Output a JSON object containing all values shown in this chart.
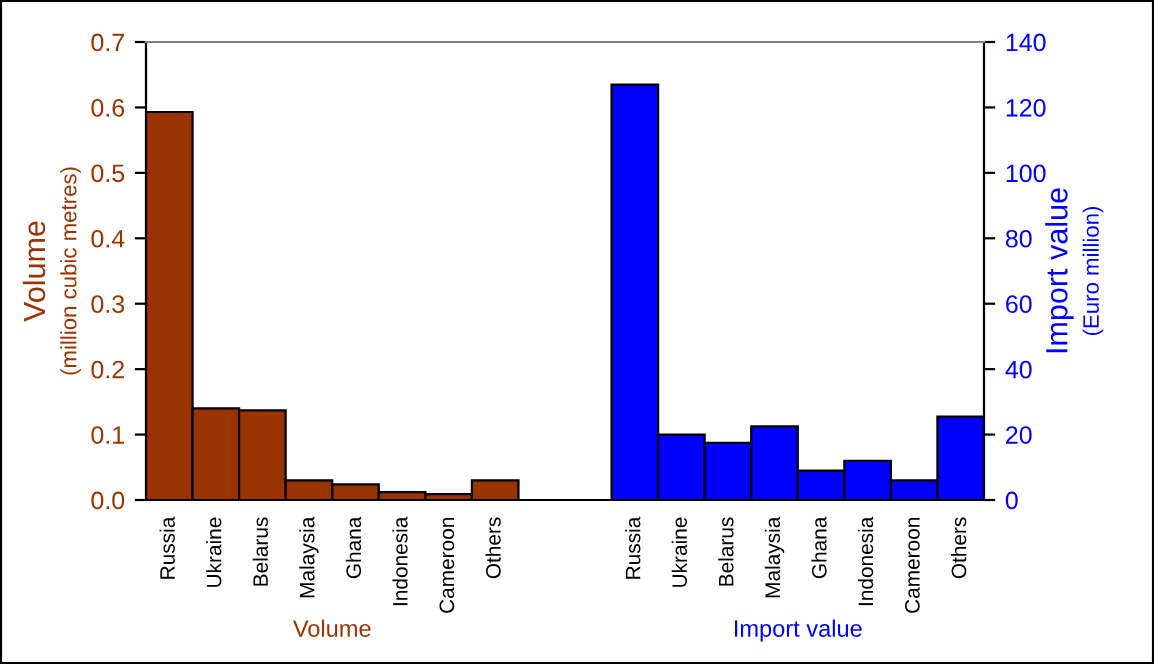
{
  "chart_data": {
    "type": "bar",
    "categories": [
      "Russia",
      "Ukraine",
      "Belarus",
      "Malaysia",
      "Ghana",
      "Indonesia",
      "Cameroon",
      "Others",
      null,
      null,
      "Russia",
      "Ukraine",
      "Belarus",
      "Malaysia",
      "Ghana",
      "Indonesia",
      "Cameroon",
      "Others"
    ],
    "series": [
      {
        "name": "Volume",
        "color": "#993300",
        "values": [
          0.593,
          0.14,
          0.137,
          0.03,
          0.024,
          0.012,
          0.009,
          0.03,
          null,
          null,
          null,
          null,
          null,
          null,
          null,
          null,
          null,
          null
        ]
      },
      {
        "name": "Import value",
        "color": "#0000ff",
        "axis": "y2",
        "values": [
          null,
          null,
          null,
          null,
          null,
          null,
          null,
          null,
          null,
          null,
          127,
          20,
          17.5,
          22.5,
          9,
          12,
          6,
          25.5
        ]
      }
    ],
    "ylabel": "Volume\n(million cubic metres)",
    "y2label": "Import value\n(Euro million)",
    "ylim": [
      0,
      0.7
    ],
    "yticks": [
      {
        "value": 0,
        "label": "0.0"
      },
      0.1,
      0.2,
      0.3,
      0.4,
      0.5,
      0.6,
      0.7
    ],
    "y2lim": [
      0,
      140
    ],
    "y2ticks": [
      0,
      20,
      40,
      60,
      80,
      100,
      120,
      140
    ],
    "grid": false,
    "legend": false
  }
}
